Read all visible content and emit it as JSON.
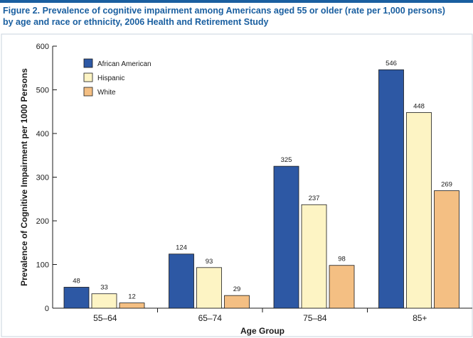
{
  "title": "Figure 2. Prevalence of cognitive impairment among Americans aged 55 or older (rate per 1,000 persons) by age and race or ethnicity, 2006 Health and Retirement Study",
  "colors": {
    "accent": "#1a5fa0",
    "border": "#c8d3de"
  },
  "chart_data": {
    "type": "bar",
    "title": "",
    "xlabel": "Age Group",
    "ylabel": "Prevalence of Cognitive Impairment per 1000 Persons",
    "ylim": [
      0,
      600
    ],
    "yticks": [
      0,
      100,
      200,
      300,
      400,
      500,
      600
    ],
    "grid": false,
    "legend_position": "top-left",
    "categories": [
      "55–64",
      "65–74",
      "75–84",
      "85+"
    ],
    "series": [
      {
        "name": "African American",
        "color": "#2d58a4",
        "values": [
          48,
          124,
          325,
          546
        ]
      },
      {
        "name": "Hispanic",
        "color": "#fdf4c4",
        "values": [
          33,
          93,
          237,
          448
        ]
      },
      {
        "name": "White",
        "color": "#f4bf83",
        "values": [
          12,
          29,
          98,
          269
        ]
      }
    ]
  }
}
